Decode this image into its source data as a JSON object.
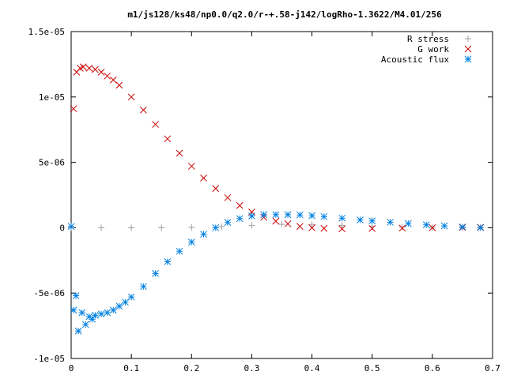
{
  "chart_data": {
    "type": "scatter",
    "title": "m1/js128/ks48/np0.0/q2.0/r-+.58-j142/logRho-1.3622/M4.01/256",
    "xlabel": "",
    "ylabel": "",
    "xlim": [
      0,
      0.7
    ],
    "ylim": [
      -1e-05,
      1.5e-05
    ],
    "x_ticks": [
      {
        "value": 0,
        "label": "0"
      },
      {
        "value": 0.1,
        "label": "0.1"
      },
      {
        "value": 0.2,
        "label": "0.2"
      },
      {
        "value": 0.3,
        "label": "0.3"
      },
      {
        "value": 0.4,
        "label": "0.4"
      },
      {
        "value": 0.5,
        "label": "0.5"
      },
      {
        "value": 0.6,
        "label": "0.6"
      },
      {
        "value": 0.7,
        "label": "0.7"
      }
    ],
    "y_ticks": [
      {
        "value": -1e-05,
        "label": "-1e-05"
      },
      {
        "value": -5e-06,
        "label": "-5e-06"
      },
      {
        "value": 0,
        "label": "0"
      },
      {
        "value": 5e-06,
        "label": "5e-06"
      },
      {
        "value": 1e-05,
        "label": "1e-05"
      },
      {
        "value": 1.5e-05,
        "label": "1.5e-05"
      }
    ],
    "grid": false,
    "legend_position": "top-right",
    "series": [
      {
        "name": "R stress",
        "marker": "plus",
        "color": "#a0a0a0",
        "points": [
          [
            0,
            0
          ],
          [
            0.05,
            0
          ],
          [
            0.1,
            0
          ],
          [
            0.15,
            0
          ],
          [
            0.2,
            2e-08
          ],
          [
            0.25,
            8e-08
          ],
          [
            0.3,
            1.8e-07
          ],
          [
            0.35,
            2.6e-07
          ],
          [
            0.4,
            2.5e-07
          ],
          [
            0.45,
            1.8e-07
          ],
          [
            0.5,
            1e-07
          ],
          [
            0.55,
            5e-08
          ],
          [
            0.6,
            2e-08
          ],
          [
            0.65,
            0
          ],
          [
            0.68,
            0
          ]
        ]
      },
      {
        "name": "G work",
        "marker": "cross",
        "color": "#cc0000",
        "points": [
          [
            0.004,
            9.1e-06
          ],
          [
            0.009,
            1.19e-05
          ],
          [
            0.015,
            1.22e-05
          ],
          [
            0.02,
            1.23e-05
          ],
          [
            0.03,
            1.22e-05
          ],
          [
            0.04,
            1.21e-05
          ],
          [
            0.05,
            1.19e-05
          ],
          [
            0.06,
            1.16e-05
          ],
          [
            0.07,
            1.13e-05
          ],
          [
            0.08,
            1.09e-05
          ],
          [
            0.1,
            1e-05
          ],
          [
            0.12,
            9e-06
          ],
          [
            0.14,
            7.9e-06
          ],
          [
            0.16,
            6.8e-06
          ],
          [
            0.18,
            5.7e-06
          ],
          [
            0.2,
            4.7e-06
          ],
          [
            0.22,
            3.8e-06
          ],
          [
            0.24,
            3e-06
          ],
          [
            0.26,
            2.3e-06
          ],
          [
            0.28,
            1.7e-06
          ],
          [
            0.3,
            1.2e-06
          ],
          [
            0.32,
            8e-07
          ],
          [
            0.34,
            5e-07
          ],
          [
            0.36,
            3e-07
          ],
          [
            0.38,
            1e-07
          ],
          [
            0.4,
            0
          ],
          [
            0.42,
            -5e-08
          ],
          [
            0.45,
            -8e-08
          ],
          [
            0.5,
            -6e-08
          ],
          [
            0.55,
            -3e-08
          ],
          [
            0.6,
            0
          ],
          [
            0.65,
            2e-08
          ],
          [
            0.68,
            3e-08
          ]
        ]
      },
      {
        "name": "Acoustic flux",
        "marker": "star",
        "color": "#0080e0",
        "points": [
          [
            0.0,
            1e-07
          ],
          [
            0.004,
            -6.3e-06
          ],
          [
            0.008,
            -5.2e-06
          ],
          [
            0.012,
            -7.9e-06
          ],
          [
            0.018,
            -6.5e-06
          ],
          [
            0.024,
            -7.4e-06
          ],
          [
            0.03,
            -6.8e-06
          ],
          [
            0.035,
            -7e-06
          ],
          [
            0.04,
            -6.7e-06
          ],
          [
            0.05,
            -6.6e-06
          ],
          [
            0.06,
            -6.5e-06
          ],
          [
            0.07,
            -6.3e-06
          ],
          [
            0.08,
            -6e-06
          ],
          [
            0.09,
            -5.7e-06
          ],
          [
            0.1,
            -5.3e-06
          ],
          [
            0.12,
            -4.5e-06
          ],
          [
            0.14,
            -3.5e-06
          ],
          [
            0.16,
            -2.6e-06
          ],
          [
            0.18,
            -1.8e-06
          ],
          [
            0.2,
            -1.1e-06
          ],
          [
            0.22,
            -5e-07
          ],
          [
            0.24,
            0
          ],
          [
            0.26,
            4e-07
          ],
          [
            0.28,
            7e-07
          ],
          [
            0.3,
            9e-07
          ],
          [
            0.32,
            1e-06
          ],
          [
            0.34,
            1e-06
          ],
          [
            0.36,
            1e-06
          ],
          [
            0.38,
            9.8e-07
          ],
          [
            0.4,
            9.2e-07
          ],
          [
            0.42,
            8.5e-07
          ],
          [
            0.45,
            7.3e-07
          ],
          [
            0.48,
            6e-07
          ],
          [
            0.5,
            5.2e-07
          ],
          [
            0.53,
            4.2e-07
          ],
          [
            0.56,
            3.2e-07
          ],
          [
            0.59,
            2.2e-07
          ],
          [
            0.62,
            1.4e-07
          ],
          [
            0.65,
            6e-08
          ],
          [
            0.68,
            0
          ]
        ]
      }
    ]
  }
}
